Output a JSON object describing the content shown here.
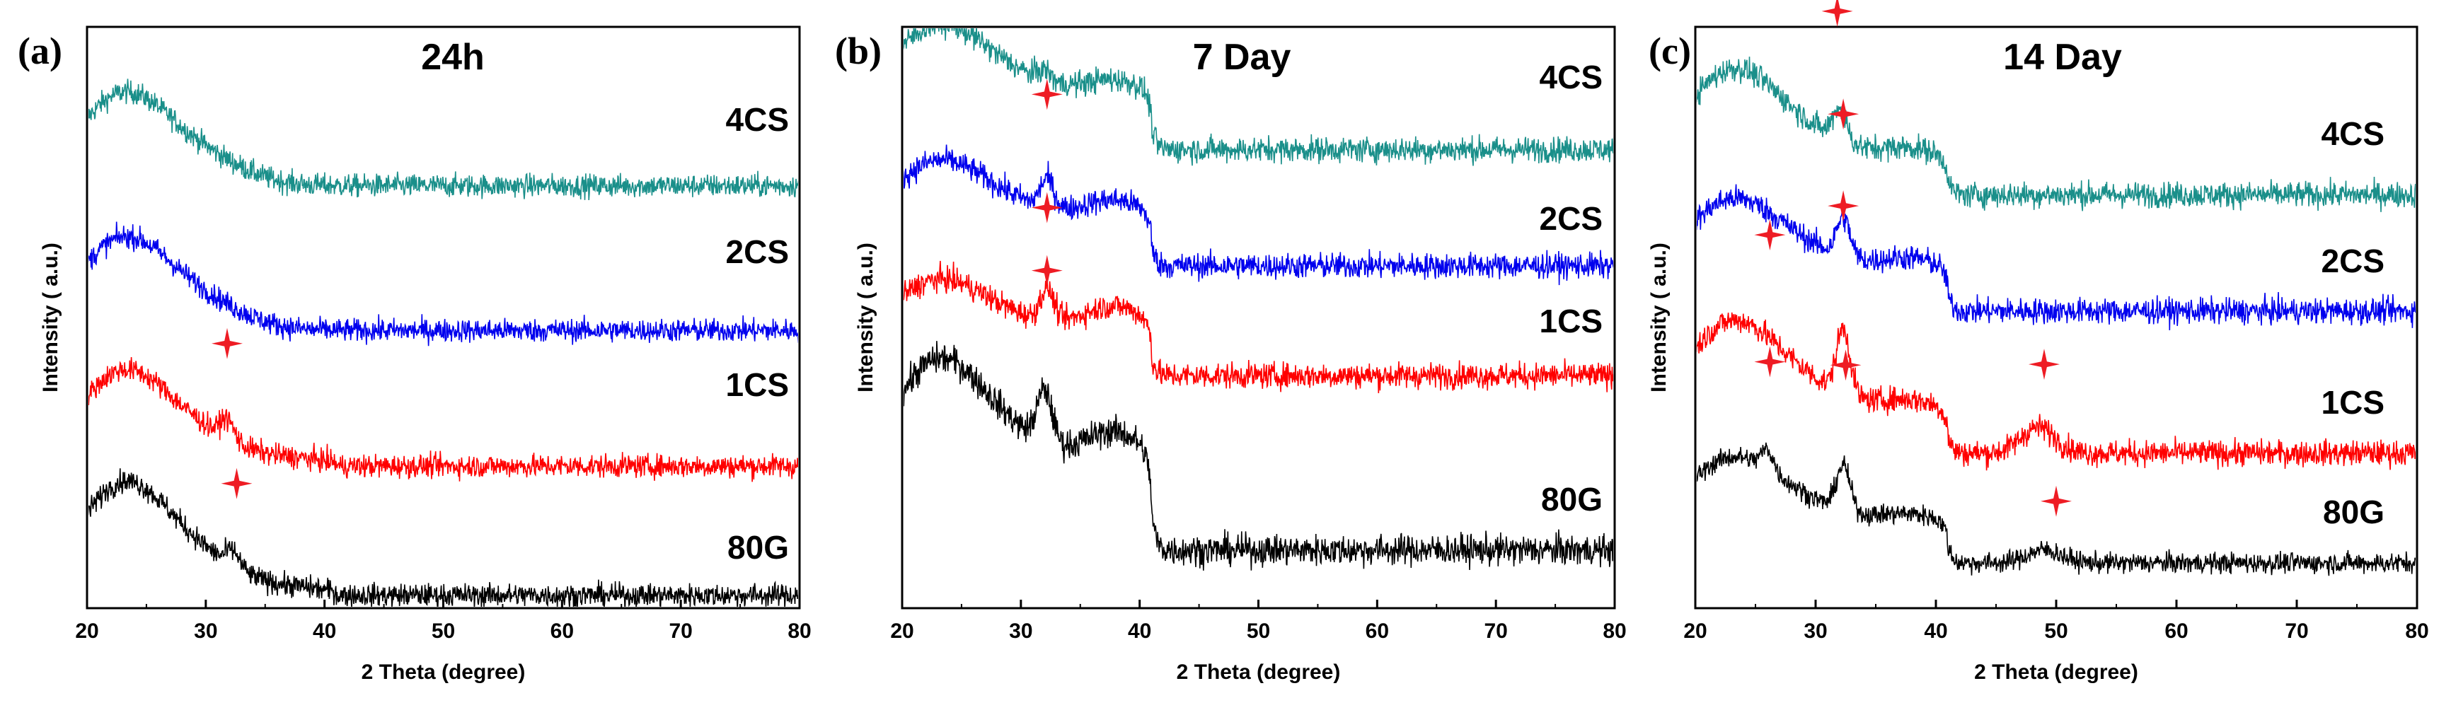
{
  "chart_data": [
    {
      "type": "line",
      "panel": "(a)",
      "title": "24h",
      "xlabel": "2 Theta (degree)",
      "ylabel": "Intensity ( a.u.)",
      "xlim": [
        20,
        80
      ],
      "xticks": [
        20,
        30,
        40,
        50,
        60,
        70,
        80
      ],
      "ylim": [
        0,
        4.5
      ],
      "series": [
        {
          "name": "4CS",
          "color": "#1a8f8a",
          "baseline": 3.27,
          "amp_low": 0.7,
          "amp_mid": 0.0,
          "noise": 0.09,
          "step": 0.0,
          "peaks": [],
          "markers": []
        },
        {
          "name": "2CS",
          "color": "#0000ee",
          "baseline": 2.15,
          "amp_low": 0.7,
          "amp_mid": 0.0,
          "noise": 0.09,
          "step": 0.0,
          "peaks": [],
          "markers": []
        },
        {
          "name": "1CS",
          "color": "#ff0000",
          "baseline": 1.1,
          "amp_low": 0.72,
          "amp_mid": 0.05,
          "noise": 0.09,
          "step": 0.0,
          "peaks": [
            [
              31.8,
              0.15,
              0.8
            ]
          ],
          "markers": [
            [
              31.8,
              0.58
            ]
          ]
        },
        {
          "name": "80G",
          "color": "#000000",
          "baseline": 0.1,
          "amp_low": 0.85,
          "amp_mid": 0.05,
          "noise": 0.09,
          "step": 0.0,
          "peaks": [
            [
              32.3,
              0.12,
              0.8
            ]
          ],
          "markers": [
            [
              32.6,
              0.55
            ]
          ]
        }
      ]
    },
    {
      "type": "line",
      "panel": "(b)",
      "title": "7 Day",
      "xlabel": "2 Theta (degree)",
      "ylabel": "Intensity ( a.u.)",
      "xlim": [
        20,
        80
      ],
      "xticks": [
        20,
        30,
        40,
        50,
        60,
        70,
        80
      ],
      "ylim": [
        0,
        4.5
      ],
      "series": [
        {
          "name": "4CS",
          "color": "#1a8f8a",
          "baseline": 3.55,
          "amp_low": 0.6,
          "amp_mid": 0.18,
          "noise": 0.1,
          "step": 0.35,
          "peaks": [
            [
              32.0,
              0.08,
              0.8
            ]
          ],
          "markers": []
        },
        {
          "name": "2CS",
          "color": "#0000ee",
          "baseline": 2.65,
          "amp_low": 0.5,
          "amp_mid": 0.2,
          "noise": 0.1,
          "step": 0.3,
          "peaks": [
            [
              32.2,
              0.22,
              0.8
            ]
          ],
          "markers": [
            [
              32.2,
              0.65
            ]
          ]
        },
        {
          "name": "1CS",
          "color": "#ff0000",
          "baseline": 1.8,
          "amp_low": 0.45,
          "amp_mid": 0.25,
          "noise": 0.1,
          "step": 0.28,
          "peaks": [
            [
              32.2,
              0.25,
              0.8
            ]
          ],
          "markers": [
            [
              32.2,
              0.62
            ]
          ]
        },
        {
          "name": "80G",
          "color": "#000000",
          "baseline": 0.45,
          "amp_low": 0.9,
          "amp_mid": 0.35,
          "noise": 0.12,
          "step": 0.55,
          "peaks": [
            [
              32.0,
              0.4,
              0.9
            ]
          ],
          "markers": [
            [
              32.2,
              0.95
            ]
          ]
        }
      ]
    },
    {
      "type": "line",
      "panel": "(c)",
      "title": "14 Day",
      "xlabel": "2 Theta (degree)",
      "ylabel": "Intensity ( a.u.)",
      "xlim": [
        20,
        80
      ],
      "xticks": [
        20,
        30,
        40,
        50,
        60,
        70,
        80
      ],
      "ylim": [
        0,
        4.5
      ],
      "series": [
        {
          "name": "4CS",
          "color": "#1a8f8a",
          "baseline": 3.2,
          "amp_low": 0.75,
          "amp_mid": 0.15,
          "noise": 0.1,
          "step": 0.2,
          "peaks": [
            [
              32.0,
              0.25,
              0.8
            ]
          ],
          "markers": [
            [
              31.8,
              0.75
            ]
          ]
        },
        {
          "name": "2CS",
          "color": "#0000ee",
          "baseline": 2.3,
          "amp_low": 0.6,
          "amp_mid": 0.15,
          "noise": 0.1,
          "step": 0.25,
          "peaks": [
            [
              32.3,
              0.3,
              0.8
            ]
          ],
          "markers": [
            [
              32.3,
              0.8
            ]
          ]
        },
        {
          "name": "1CS",
          "color": "#ff0000",
          "baseline": 1.2,
          "amp_low": 0.75,
          "amp_mid": 0.15,
          "noise": 0.1,
          "step": 0.25,
          "peaks": [
            [
              32.3,
              0.5,
              0.8
            ],
            [
              48.5,
              0.2,
              2.0
            ]
          ],
          "markers": [
            [
              26.2,
              0.8
            ],
            [
              32.3,
              0.95
            ],
            [
              49.0,
              0.5
            ]
          ]
        },
        {
          "name": "80G",
          "color": "#000000",
          "baseline": 0.35,
          "amp_low": 0.55,
          "amp_mid": 0.12,
          "noise": 0.08,
          "step": 0.25,
          "peaks": [
            [
              26.0,
              0.15,
              0.7
            ],
            [
              32.3,
              0.35,
              0.8
            ],
            [
              49.0,
              0.1,
              2.0
            ]
          ],
          "markers": [
            [
              26.2,
              0.7
            ],
            [
              32.5,
              0.8
            ],
            [
              50.0,
              0.4
            ]
          ]
        }
      ]
    }
  ]
}
